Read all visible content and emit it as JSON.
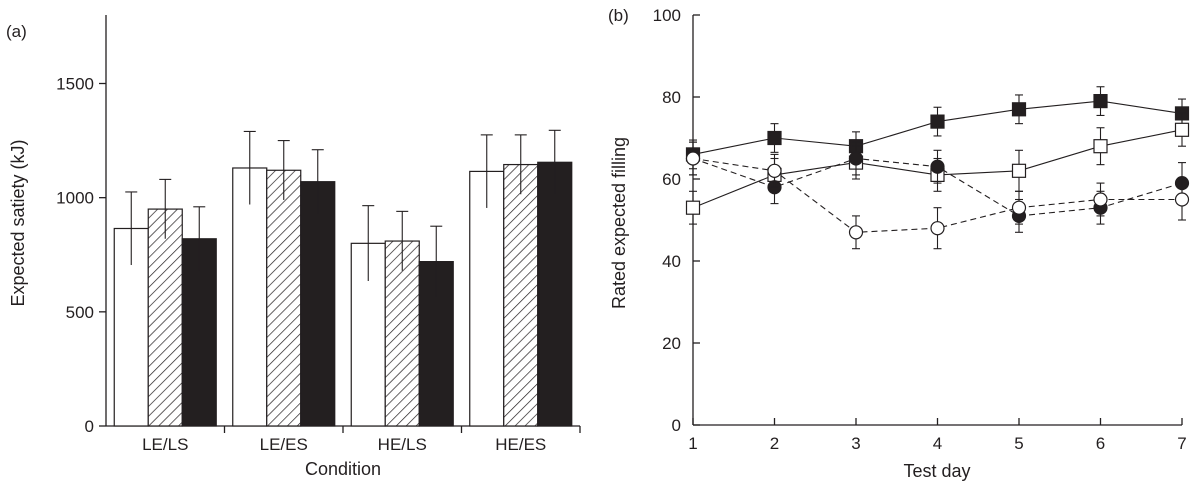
{
  "figure": {
    "panel_a_label": "(a)",
    "panel_b_label": "(b)"
  },
  "colors": {
    "ink": "#231f20",
    "open_fill": "#ffffff",
    "solid_fill": "#231f20"
  },
  "chart_data": [
    {
      "type": "bar",
      "panel": "(a)",
      "xlabel": "Condition",
      "ylabel": "Expected satiety (kJ)",
      "ylim": [
        0,
        1800
      ],
      "yticks": [
        0,
        500,
        1000,
        1500
      ],
      "categories": [
        "LE/LS",
        "LE/ES",
        "HE/LS",
        "HE/ES"
      ],
      "grid": false,
      "series": [
        {
          "style": "open",
          "values": [
            865,
            1130,
            800,
            1115
          ],
          "errors": [
            160,
            160,
            165,
            160
          ]
        },
        {
          "style": "hatched",
          "values": [
            950,
            1120,
            810,
            1145
          ],
          "errors": [
            130,
            130,
            130,
            130
          ]
        },
        {
          "style": "solid",
          "values": [
            820,
            1070,
            720,
            1155
          ],
          "errors": [
            140,
            140,
            155,
            140
          ]
        }
      ]
    },
    {
      "type": "line",
      "panel": "(b)",
      "xlabel": "Test day",
      "ylabel": "Rated expected filling",
      "xlim": [
        1,
        7
      ],
      "ylim": [
        0,
        100
      ],
      "xticks": [
        1,
        2,
        3,
        4,
        5,
        6,
        7
      ],
      "yticks": [
        0,
        20,
        40,
        60,
        80,
        100
      ],
      "grid": false,
      "x": [
        1,
        2,
        3,
        4,
        5,
        6,
        7
      ],
      "series": [
        {
          "marker": "filled-square",
          "line": "solid",
          "values": [
            66,
            70,
            68,
            74,
            77,
            79,
            76
          ],
          "errors": [
            3.5,
            3.5,
            3.5,
            3.5,
            3.5,
            3.5,
            3.5
          ]
        },
        {
          "marker": "open-square",
          "line": "solid",
          "values": [
            53,
            61,
            64,
            61,
            62,
            68,
            72
          ],
          "errors": [
            4,
            4,
            4,
            4,
            5,
            4.5,
            4
          ]
        },
        {
          "marker": "filled-circle",
          "line": "dashed",
          "values": [
            65,
            58,
            65,
            63,
            51,
            53,
            59
          ],
          "errors": [
            4,
            4,
            4,
            4,
            4,
            4,
            5
          ]
        },
        {
          "marker": "open-circle",
          "line": "dashed",
          "values": [
            65,
            62,
            47,
            48,
            53,
            55,
            55
          ],
          "errors": [
            4,
            4,
            4,
            5,
            4,
            4,
            5
          ]
        }
      ]
    }
  ]
}
